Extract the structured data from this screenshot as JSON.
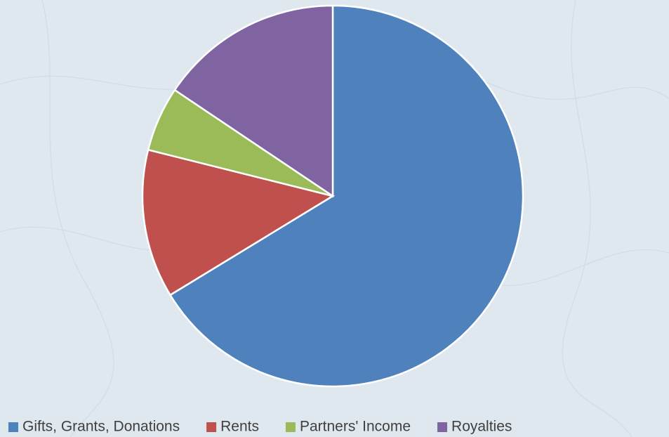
{
  "chart_data": {
    "type": "pie",
    "categories": [
      "Gifts, Grants, Donations",
      "Rents",
      "Partners' Income",
      "Royalties"
    ],
    "values": [
      66.3,
      12.6,
      5.5,
      15.6
    ],
    "colors": [
      "#4f81bd",
      "#c0504d",
      "#9bbb59",
      "#8064a2"
    ],
    "legend": "bottom"
  }
}
